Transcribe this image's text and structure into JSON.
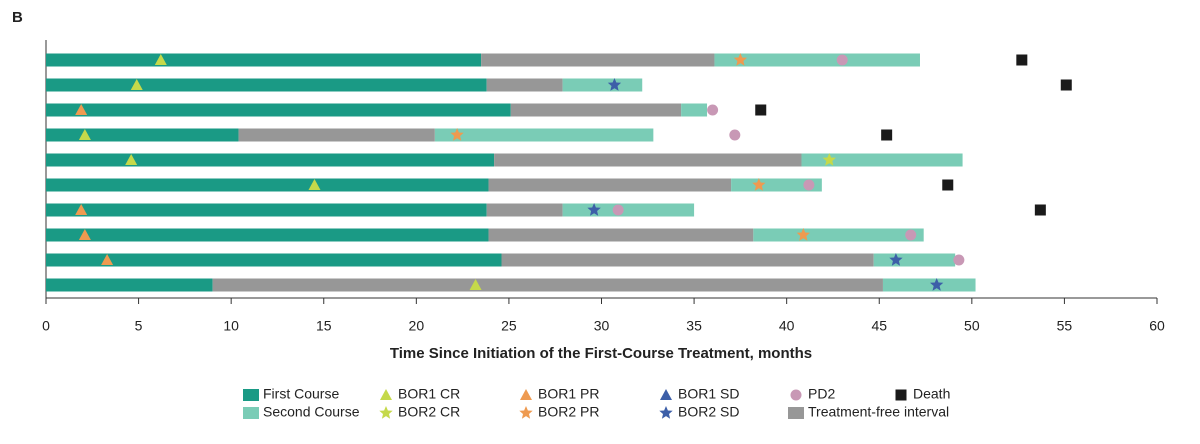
{
  "chart_data": {
    "type": "swimmer",
    "panel_label": "B",
    "x_label": "Time Since Initiation of the First-Course Treatment, months",
    "xlim": [
      0,
      60
    ],
    "xticks": [
      0,
      5,
      10,
      15,
      20,
      25,
      30,
      35,
      40,
      45,
      50,
      55,
      60
    ],
    "series": [
      {
        "name": "First Course",
        "marker": "bar",
        "color": "#1a9a85",
        "values": [
          23.5,
          23.8,
          25.1,
          10.4,
          24.2,
          23.9,
          23.8,
          23.9,
          24.6,
          9.0
        ]
      },
      {
        "name": "Treatment-free interval",
        "marker": "bar",
        "color": "#979797",
        "values": [
          12.6,
          4.1,
          9.2,
          10.6,
          16.6,
          13.1,
          4.1,
          14.3,
          20.1,
          36.2
        ]
      },
      {
        "name": "Second Course",
        "marker": "bar",
        "color": "#7accb6",
        "values": [
          11.1,
          4.3,
          1.4,
          11.8,
          8.7,
          4.9,
          7.1,
          9.2,
          4.4,
          5.0
        ]
      },
      {
        "name": "BOR1 CR",
        "marker": "triangle",
        "color": "#c5d94a",
        "values": [
          6.2,
          4.9,
          null,
          2.1,
          4.6,
          14.5,
          null,
          null,
          null,
          23.2
        ]
      },
      {
        "name": "BOR2 CR",
        "marker": "star",
        "color": "#c5d94a",
        "values": [
          null,
          null,
          null,
          null,
          42.3,
          null,
          null,
          null,
          null,
          null
        ]
      },
      {
        "name": "BOR1 PR",
        "marker": "triangle",
        "color": "#ee9a50",
        "values": [
          null,
          null,
          1.9,
          null,
          null,
          null,
          1.9,
          2.1,
          3.3,
          null
        ]
      },
      {
        "name": "BOR2 PR",
        "marker": "star",
        "color": "#ee9a50",
        "values": [
          37.5,
          null,
          null,
          22.2,
          null,
          38.5,
          null,
          40.9,
          null,
          null
        ]
      },
      {
        "name": "BOR1 SD",
        "marker": "triangle",
        "color": "#3d5fa8",
        "values": [
          null,
          null,
          null,
          null,
          null,
          null,
          null,
          null,
          null,
          null
        ]
      },
      {
        "name": "BOR2 SD",
        "marker": "star",
        "color": "#3d5fa8",
        "values": [
          null,
          30.7,
          null,
          null,
          null,
          null,
          29.6,
          null,
          45.9,
          48.1
        ]
      },
      {
        "name": "PD2",
        "marker": "circle",
        "color": "#c898b5",
        "values": [
          43.0,
          null,
          36.0,
          37.2,
          null,
          41.2,
          30.9,
          46.7,
          49.3,
          null
        ]
      },
      {
        "name": "Death",
        "marker": "square",
        "color": "#1a1a1a",
        "values": [
          52.7,
          55.1,
          38.6,
          45.4,
          null,
          48.7,
          53.7,
          null,
          null,
          null
        ]
      }
    ]
  }
}
